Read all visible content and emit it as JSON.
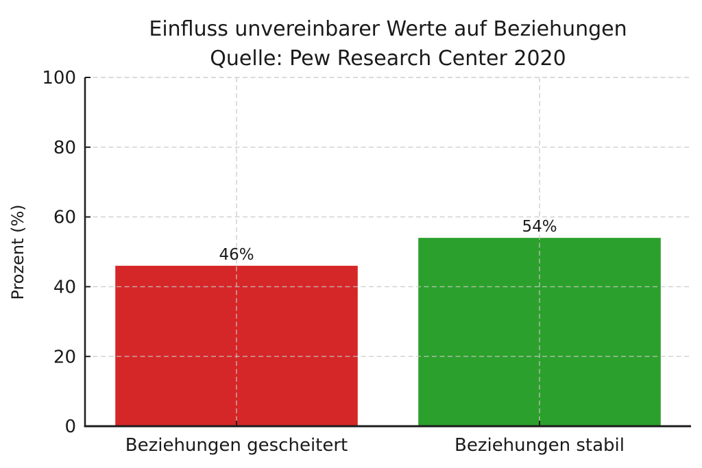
{
  "chart_data": {
    "type": "bar",
    "title": "Einfluss unvereinbarer Werte auf Beziehungen",
    "subtitle": "Quelle: Pew Research Center 2020",
    "categories": [
      "Beziehungen gescheitert",
      "Beziehungen stabil"
    ],
    "values": [
      46,
      54
    ],
    "bar_labels": [
      "46%",
      "54%"
    ],
    "bar_colors": [
      "#d62728",
      "#2ca02c"
    ],
    "xlabel": "",
    "ylabel": "Prozent (%)",
    "ylim": [
      0,
      100
    ],
    "yticks": [
      0,
      20,
      40,
      60,
      80,
      100
    ],
    "grid": "dashed horizontal gridlines at yticks and dashed vertical gridlines at bar centers, drawn above bars",
    "legend": "none"
  },
  "colors": {
    "background": "#ffffff",
    "text": "#1a1a1a",
    "spine": "#1c1c1c",
    "grid": "#c7c7c7",
    "bar_failed": "#d62728",
    "bar_stable": "#2ca02c"
  }
}
